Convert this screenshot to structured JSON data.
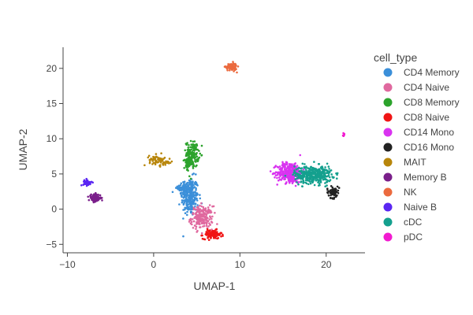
{
  "chart_data": {
    "type": "scatter",
    "title": "",
    "xlabel": "UMAP-1",
    "ylabel": "UMAP-2",
    "xlim": [
      -10.5,
      24.5
    ],
    "ylim": [
      -6.2,
      23
    ],
    "xticks": [
      "−10",
      "0",
      "10",
      "20"
    ],
    "xtick_values": [
      -10,
      0,
      10,
      20
    ],
    "yticks": [
      "−5",
      "0",
      "5",
      "10",
      "15",
      "20"
    ],
    "ytick_values": [
      -5,
      0,
      5,
      10,
      15,
      20
    ],
    "grid": false,
    "legend": {
      "title": "cell_type",
      "position": "right",
      "entries": [
        "CD4 Memory",
        "CD4 Naive",
        "CD8 Memory",
        "CD8 Naive",
        "CD14 Mono",
        "CD16 Mono",
        "MAIT",
        "Memory B",
        "NK",
        "Naive B",
        "cDC",
        "pDC"
      ]
    },
    "series": [
      {
        "name": "CD4 Memory",
        "color": "#3b8fd9",
        "clusters": [
          {
            "cx": 4.2,
            "cy": 1.8,
            "sx": 0.55,
            "sy": 1.5,
            "n": 260
          },
          {
            "cx": 3.5,
            "cy": 3.0,
            "sx": 0.4,
            "sy": 0.5,
            "n": 60
          }
        ]
      },
      {
        "name": "CD4 Naive",
        "color": "#e0699f",
        "clusters": [
          {
            "cx": 5.6,
            "cy": -1.2,
            "sx": 0.7,
            "sy": 0.9,
            "n": 200
          }
        ]
      },
      {
        "name": "CD8 Memory",
        "color": "#2ca32c",
        "clusters": [
          {
            "cx": 4.5,
            "cy": 7.8,
            "sx": 0.4,
            "sy": 1.0,
            "n": 150
          },
          {
            "cx": 3.9,
            "cy": 6.3,
            "sx": 0.2,
            "sy": 0.6,
            "n": 40
          }
        ]
      },
      {
        "name": "CD8 Naive",
        "color": "#f01515",
        "clusters": [
          {
            "cx": 6.8,
            "cy": -3.6,
            "sx": 0.6,
            "sy": 0.35,
            "n": 110
          }
        ]
      },
      {
        "name": "CD14 Mono",
        "color": "#d933f0",
        "clusters": [
          {
            "cx": 15.8,
            "cy": 5.2,
            "sx": 0.8,
            "sy": 0.8,
            "n": 360
          }
        ]
      },
      {
        "name": "CD16 Mono",
        "color": "#222222",
        "clusters": [
          {
            "cx": 20.8,
            "cy": 2.4,
            "sx": 0.4,
            "sy": 0.45,
            "n": 60
          }
        ]
      },
      {
        "name": "MAIT",
        "color": "#b8860b",
        "clusters": [
          {
            "cx": 0.4,
            "cy": 7.0,
            "sx": 0.5,
            "sy": 0.4,
            "n": 60
          },
          {
            "cx": 1.4,
            "cy": 6.6,
            "sx": 0.4,
            "sy": 0.15,
            "n": 20
          }
        ]
      },
      {
        "name": "Memory B",
        "color": "#7a1f8a",
        "clusters": [
          {
            "cx": -6.8,
            "cy": 1.6,
            "sx": 0.4,
            "sy": 0.3,
            "n": 90
          }
        ]
      },
      {
        "name": "NK",
        "color": "#eb6a3e",
        "clusters": [
          {
            "cx": 9.0,
            "cy": 20.2,
            "sx": 0.35,
            "sy": 0.3,
            "n": 90
          }
        ]
      },
      {
        "name": "Naive B",
        "color": "#5a26f2",
        "clusters": [
          {
            "cx": -7.7,
            "cy": 3.8,
            "sx": 0.25,
            "sy": 0.25,
            "n": 40
          }
        ]
      },
      {
        "name": "cDC",
        "color": "#14a08e",
        "clusters": [
          {
            "cx": 18.5,
            "cy": 4.9,
            "sx": 1.2,
            "sy": 0.7,
            "n": 380
          }
        ]
      },
      {
        "name": "pDC",
        "color": "#f21bd0",
        "clusters": [
          {
            "cx": 22.1,
            "cy": 10.5,
            "sx": 0.1,
            "sy": 0.12,
            "n": 6
          }
        ]
      }
    ]
  }
}
